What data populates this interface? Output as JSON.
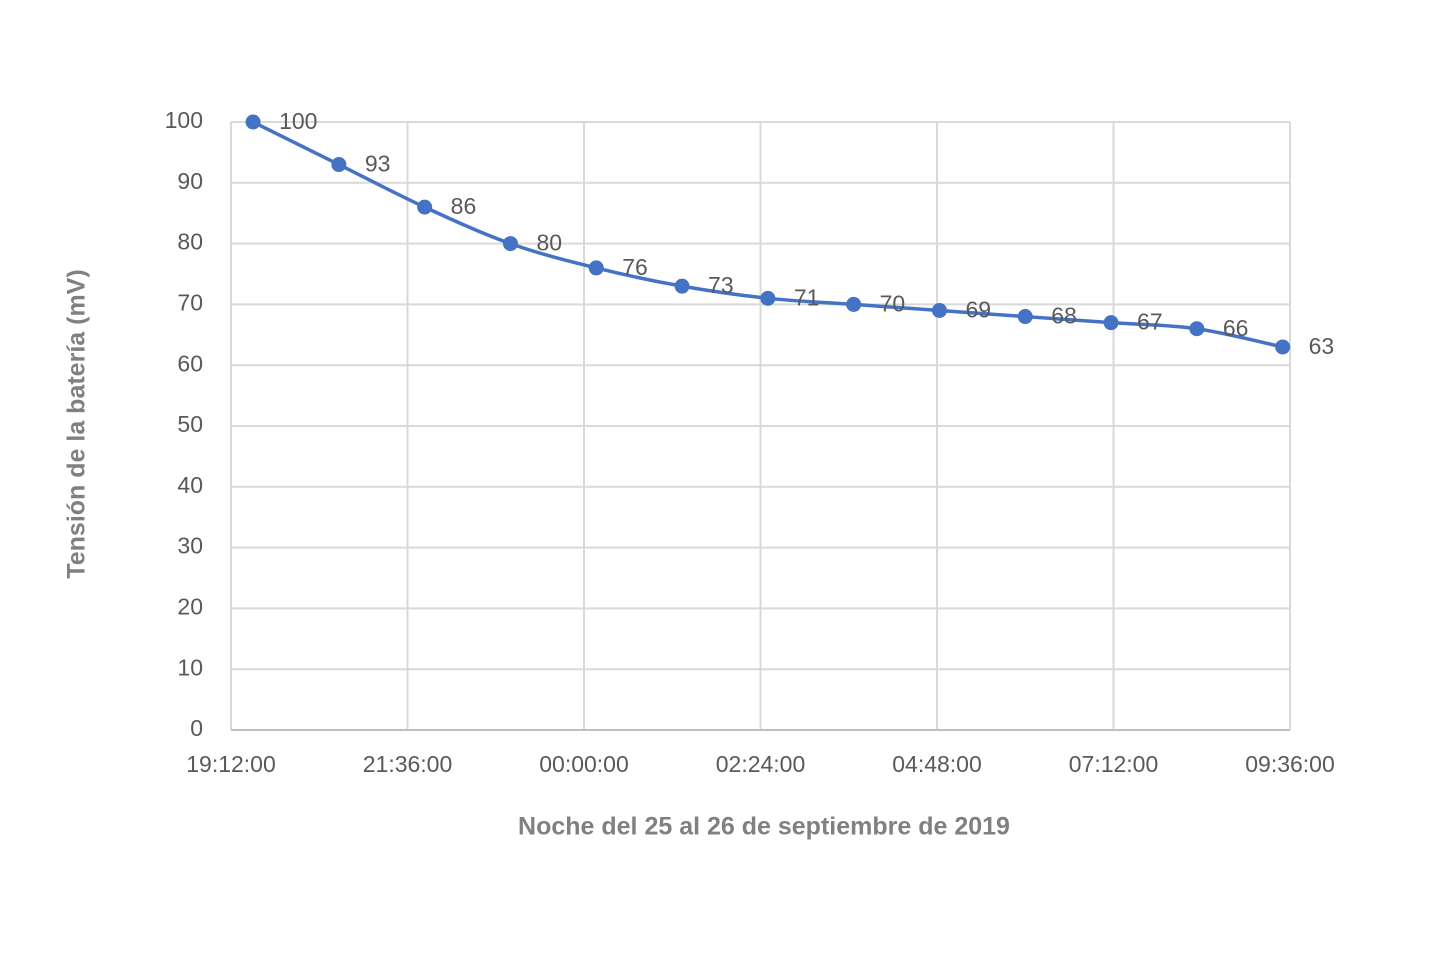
{
  "chart_data": {
    "type": "line",
    "y_label": "Tensión de la batería (mV)",
    "x_label": "Noche del 25 al 26 de septiembre de 2019",
    "x": [
      "19:30:00",
      "20:40:00",
      "21:50:00",
      "23:00:00",
      "00:10:00",
      "01:20:00",
      "02:30:00",
      "03:40:00",
      "04:50:00",
      "06:00:00",
      "07:10:00",
      "08:20:00",
      "09:30:00"
    ],
    "series": [
      {
        "name": "Tensión",
        "color": "#4472c4",
        "values": [
          100,
          93,
          86,
          80,
          76,
          73,
          71,
          70,
          69,
          68,
          67,
          66,
          63
        ]
      }
    ],
    "xlim": [
      "19:12:00",
      "09:36:00"
    ],
    "xticks": [
      "19:12:00",
      "21:36:00",
      "00:00:00",
      "02:24:00",
      "04:48:00",
      "07:12:00",
      "09:36:00"
    ],
    "ylim": [
      0,
      100
    ],
    "yticks": [
      0,
      10,
      20,
      30,
      40,
      50,
      60,
      70,
      80,
      90,
      100
    ],
    "grid": true
  }
}
